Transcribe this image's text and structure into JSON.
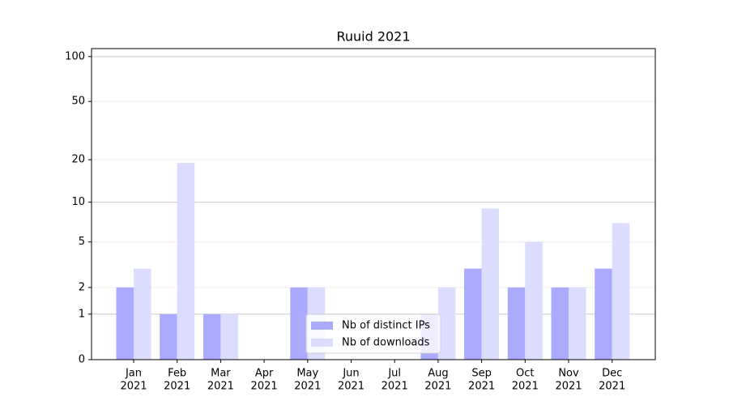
{
  "chart_data": {
    "type": "bar",
    "title": "Ruuid 2021",
    "categories": [
      [
        "Jan",
        "2021"
      ],
      [
        "Feb",
        "2021"
      ],
      [
        "Mar",
        "2021"
      ],
      [
        "Apr",
        "2021"
      ],
      [
        "May",
        "2021"
      ],
      [
        "Jun",
        "2021"
      ],
      [
        "Jul",
        "2021"
      ],
      [
        "Aug",
        "2021"
      ],
      [
        "Sep",
        "2021"
      ],
      [
        "Oct",
        "2021"
      ],
      [
        "Nov",
        "2021"
      ],
      [
        "Dec",
        "2021"
      ]
    ],
    "series": [
      {
        "name": "Nb of distinct IPs",
        "color": "#aaaaff",
        "values": [
          2,
          1,
          1,
          0,
          2,
          0,
          0,
          1,
          3,
          2,
          2,
          3
        ]
      },
      {
        "name": "Nb of downloads",
        "color": "#dcdcff",
        "values": [
          3,
          19,
          1,
          0,
          2,
          0,
          0,
          2,
          9,
          5,
          2,
          7
        ]
      }
    ],
    "yscale": "log1p",
    "ylim": [
      0,
      113
    ],
    "yticks": [
      0,
      1,
      2,
      5,
      10,
      20,
      50,
      100
    ],
    "grid": true,
    "legend": "lower center"
  }
}
